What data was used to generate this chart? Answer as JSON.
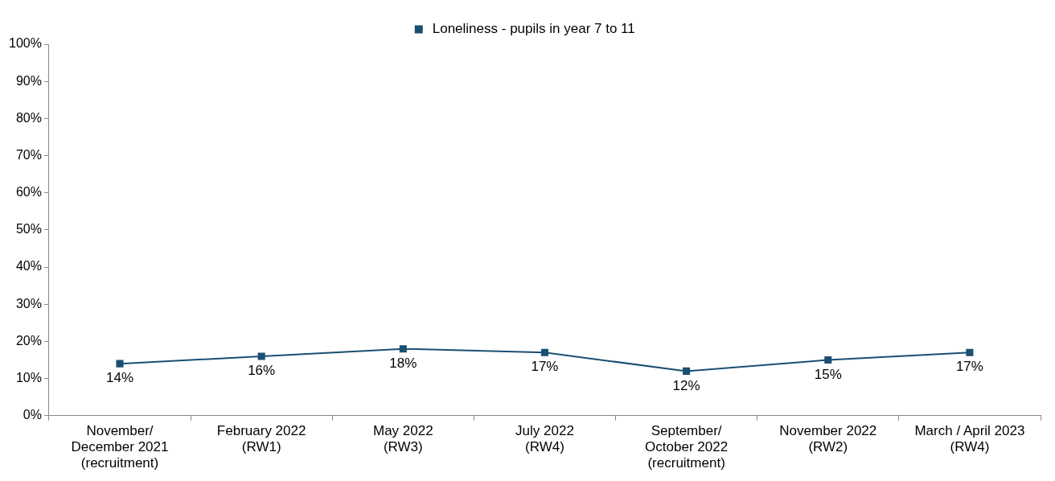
{
  "chart_data": {
    "type": "line",
    "categories": [
      "November/\nDecember 2021\n(recruitment)",
      "February 2022\n(RW1)",
      "May 2022\n(RW3)",
      "July 2022\n(RW4)",
      "September/\nOctober 2022\n(recruitment)",
      "November 2022\n(RW2)",
      "March / April 2023\n(RW4)"
    ],
    "series": [
      {
        "name": "Loneliness - pupils in year 7 to 11",
        "color": "#1a4f72",
        "values": [
          14,
          16,
          18,
          17,
          12,
          15,
          17
        ],
        "value_labels": [
          "14%",
          "16%",
          "18%",
          "17%",
          "12%",
          "15%",
          "17%"
        ]
      }
    ],
    "ylim": [
      0,
      100
    ],
    "yticks": [
      {
        "value": 0,
        "label": "0%"
      },
      {
        "value": 10,
        "label": "10%"
      },
      {
        "value": 20,
        "label": "20%"
      },
      {
        "value": 30,
        "label": "30%"
      },
      {
        "value": 40,
        "label": "40%"
      },
      {
        "value": 50,
        "label": "50%"
      },
      {
        "value": 60,
        "label": "60%"
      },
      {
        "value": 70,
        "label": "70%"
      },
      {
        "value": 80,
        "label": "80%"
      },
      {
        "value": 90,
        "label": "90%"
      },
      {
        "value": 100,
        "label": "100%"
      }
    ],
    "grid": false,
    "legend": "top",
    "marker": "square",
    "line_style": "solid"
  }
}
